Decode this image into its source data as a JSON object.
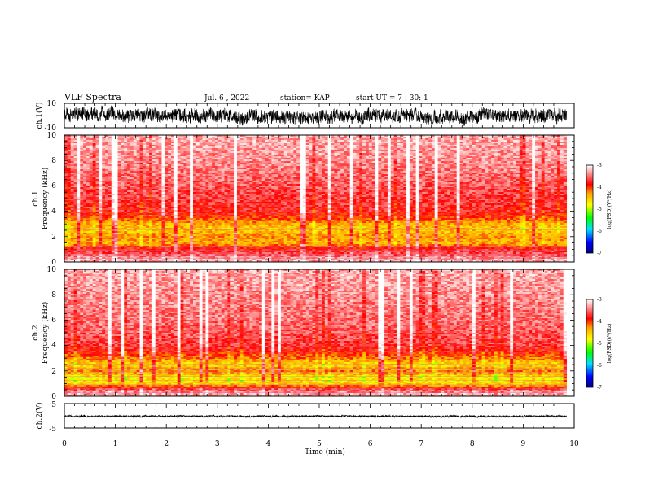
{
  "header": {
    "title": "VLF Spectra",
    "date": "Jul. 6 , 2022",
    "station": "station= KAP",
    "start_ut": "start UT = 7 : 30: 1"
  },
  "colors": {
    "ink": "#000000",
    "background": "#ffffff",
    "spectrogram_scale": [
      "#000080",
      "#0000ff",
      "#00e0ff",
      "#00ff00",
      "#ffff00",
      "#ffa000",
      "#ff0000",
      "#ffffff"
    ]
  },
  "chart_data": [
    {
      "type": "line",
      "panel": "waveform_ch1",
      "ylabel": "ch.1(V)",
      "ylim": [
        -10,
        10
      ],
      "yticks": [
        "10",
        "-10"
      ],
      "x_range_min": [
        0,
        9.85
      ],
      "amplitude_envelope_V": [
        {
          "x": 0,
          "mean": 2,
          "spread": 7
        },
        {
          "x": 1,
          "mean": 1,
          "spread": 7
        },
        {
          "x": 2,
          "mean": 1,
          "spread": 7
        },
        {
          "x": 3,
          "mean": 0,
          "spread": 7
        },
        {
          "x": 4,
          "mean": -1,
          "spread": 7
        },
        {
          "x": 5,
          "mean": -1,
          "spread": 7
        },
        {
          "x": 6,
          "mean": 0,
          "spread": 7
        },
        {
          "x": 7,
          "mean": -1,
          "spread": 7
        },
        {
          "x": 8,
          "mean": -1,
          "spread": 7
        },
        {
          "x": 9,
          "mean": 0,
          "spread": 7
        },
        {
          "x": 9.85,
          "mean": 0,
          "spread": 7
        }
      ]
    },
    {
      "type": "heatmap",
      "panel": "spectrogram_ch1",
      "ylabel": "ch.1",
      "ylabel2": "Frequency (kHz)",
      "ylim": [
        0,
        10
      ],
      "yticks": [
        "0",
        "2",
        "4",
        "6",
        "8",
        "10"
      ],
      "x_range_min": [
        0,
        9.85
      ],
      "colorbar": {
        "label": "log(PSD)(V²/Hz)",
        "range": [
          -7,
          -3
        ],
        "ticks": [
          "-3",
          "-4",
          "-5",
          "-6",
          "-7"
        ]
      },
      "log_psd_by_frequency_kHz": [
        {
          "f": 0.2,
          "v": -3.3
        },
        {
          "f": 0.6,
          "v": -3.6
        },
        {
          "f": 1.0,
          "v": -3.8
        },
        {
          "f": 1.5,
          "v": -4.4
        },
        {
          "f": 2.0,
          "v": -4.3
        },
        {
          "f": 2.5,
          "v": -4.5
        },
        {
          "f": 3.0,
          "v": -4.4
        },
        {
          "f": 3.5,
          "v": -4.0
        },
        {
          "f": 4.0,
          "v": -3.8
        },
        {
          "f": 6.0,
          "v": -3.6
        },
        {
          "f": 8.0,
          "v": -3.4
        },
        {
          "f": 10.0,
          "v": -3.3
        }
      ]
    },
    {
      "type": "heatmap",
      "panel": "spectrogram_ch2",
      "ylabel": "ch.2",
      "ylabel2": "Frequency (kHz)",
      "ylim": [
        0,
        10
      ],
      "yticks": [
        "0",
        "2",
        "4",
        "6",
        "8",
        "10"
      ],
      "x_range_min": [
        0,
        9.85
      ],
      "colorbar": {
        "label": "log(PSD)(V²/Hz)",
        "range": [
          -7,
          -3
        ],
        "ticks": [
          "-3",
          "-4",
          "-5",
          "-6",
          "-7"
        ]
      },
      "log_psd_by_frequency_kHz": [
        {
          "f": 0.2,
          "v": -3.3
        },
        {
          "f": 0.6,
          "v": -3.7
        },
        {
          "f": 1.0,
          "v": -4.6
        },
        {
          "f": 1.5,
          "v": -4.7
        },
        {
          "f": 2.0,
          "v": -4.2
        },
        {
          "f": 2.5,
          "v": -4.6
        },
        {
          "f": 3.0,
          "v": -4.2
        },
        {
          "f": 3.5,
          "v": -3.9
        },
        {
          "f": 4.0,
          "v": -3.7
        },
        {
          "f": 6.0,
          "v": -3.5
        },
        {
          "f": 8.0,
          "v": -3.4
        },
        {
          "f": 10.0,
          "v": -3.3
        }
      ]
    },
    {
      "type": "line",
      "panel": "waveform_ch2",
      "ylabel": "ch.2(V)",
      "ylim": [
        -5,
        5
      ],
      "yticks": [
        "5",
        "-5"
      ],
      "x_range_min": [
        0,
        9.85
      ],
      "amplitude_envelope_V": [
        {
          "x": 0,
          "mean": -0.2,
          "spread": 0.4
        },
        {
          "x": 5,
          "mean": -0.2,
          "spread": 0.4
        },
        {
          "x": 9.85,
          "mean": -0.2,
          "spread": 0.4
        }
      ]
    }
  ],
  "x_axis": {
    "label": "Time (min)",
    "xlim": [
      0,
      10
    ],
    "ticks": [
      "0",
      "1",
      "2",
      "3",
      "4",
      "5",
      "6",
      "7",
      "8",
      "9",
      "10"
    ]
  }
}
